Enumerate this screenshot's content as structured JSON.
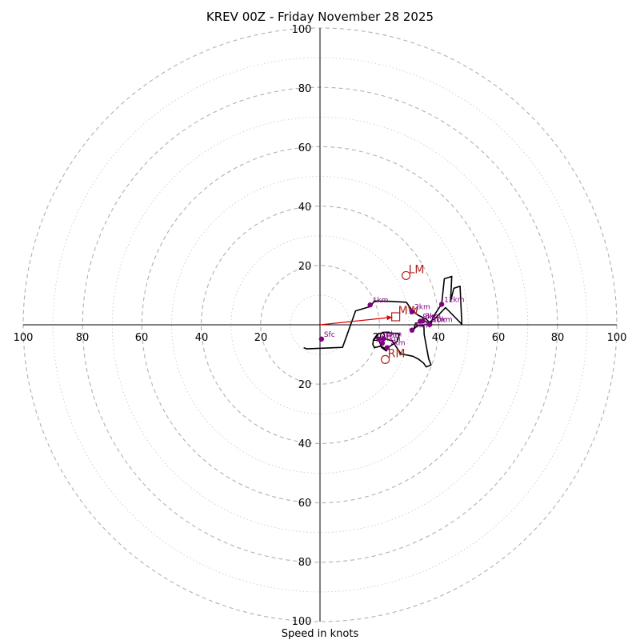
{
  "chart_data": {
    "type": "hodograph",
    "title": "KREV 00Z - Friday November 28 2025",
    "xlabel": "Speed in knots",
    "max_speed": 100,
    "ring_major_step": 20,
    "ring_minor_step": 10,
    "tick_labels": {
      "x_left": [
        "100",
        "80",
        "60",
        "40",
        "20"
      ],
      "x_right": [
        "20",
        "40",
        "60",
        "80",
        "100"
      ],
      "y_top": [
        "100",
        "80",
        "60",
        "40",
        "20"
      ],
      "y_bottom": [
        "20",
        "40",
        "60",
        "80",
        "100"
      ]
    },
    "trace": [
      [
        -5.5,
        -7.7
      ],
      [
        -4.4,
        -8.1
      ],
      [
        7.6,
        -7.6
      ],
      [
        12.0,
        4.7
      ],
      [
        17.1,
        6.2
      ],
      [
        17.6,
        7.0
      ],
      [
        18.3,
        8.0
      ],
      [
        23.8,
        7.9
      ],
      [
        29.1,
        7.6
      ],
      [
        31.2,
        4.6
      ],
      [
        33.1,
        3.2
      ],
      [
        35.7,
        2.0
      ],
      [
        36.8,
        0.9
      ],
      [
        37.4,
        0.2
      ],
      [
        38.0,
        2.5
      ],
      [
        41.0,
        7.0
      ],
      [
        41.9,
        15.5
      ],
      [
        44.4,
        16.3
      ],
      [
        44.0,
        7.9
      ],
      [
        45.1,
        12.3
      ],
      [
        47.2,
        13.0
      ],
      [
        47.8,
        0.2
      ],
      [
        42.3,
        5.8
      ],
      [
        38.9,
        2.2
      ],
      [
        36.4,
        0.6
      ],
      [
        34.4,
        1.9
      ],
      [
        34.0,
        0.8
      ],
      [
        32.2,
        0.5
      ],
      [
        31.6,
        -1.5
      ],
      [
        32.9,
        -0.1
      ],
      [
        35.0,
        -0.4
      ],
      [
        35.1,
        -3.2
      ],
      [
        36.6,
        -11.4
      ],
      [
        37.4,
        -13.5
      ],
      [
        35.8,
        -14.2
      ],
      [
        34.9,
        -12.9
      ],
      [
        33.2,
        -11.6
      ],
      [
        31.3,
        -10.6
      ],
      [
        27.3,
        -9.8
      ],
      [
        24.4,
        -5.5
      ],
      [
        21.5,
        -4.5
      ],
      [
        19.9,
        -5.2
      ],
      [
        20.7,
        -7.6
      ],
      [
        22.3,
        -8.8
      ],
      [
        23.3,
        -7.4
      ],
      [
        26.0,
        -5.6
      ],
      [
        26.8,
        -3.1
      ],
      [
        21.9,
        -2.5
      ],
      [
        19.4,
        -3.1
      ],
      [
        18.0,
        -5.0
      ],
      [
        17.8,
        -6.6
      ],
      [
        18.3,
        -7.7
      ],
      [
        20.4,
        -7.2
      ],
      [
        22.1,
        -8.0
      ],
      [
        22.9,
        -7.7
      ]
    ],
    "height_labels": [
      {
        "label": "Sfc",
        "u": 0.5,
        "v": -4.8
      },
      {
        "label": "1km",
        "u": 16.9,
        "v": 6.7
      },
      {
        "label": "2km",
        "u": 31.0,
        "v": 4.4
      },
      {
        "label": "3km",
        "u": 34.6,
        "v": 1.3
      },
      {
        "label": "5km",
        "u": 31.0,
        "v": -1.8
      },
      {
        "label": "8km",
        "u": 36.8,
        "v": 0.2
      },
      {
        "label": "9km",
        "u": 33.8,
        "v": 1.2
      },
      {
        "label": "10km",
        "u": 37.0,
        "v": 0.1
      },
      {
        "label": "12km",
        "u": 41.0,
        "v": 6.9
      },
      {
        "label": "2km",
        "u": 19.8,
        "v": -4.8
      },
      {
        "label": "4km",
        "u": 21.0,
        "v": -6.2
      },
      {
        "label": "6km",
        "u": 21.4,
        "v": -4.7
      },
      {
        "label": "7km",
        "u": 22.6,
        "v": -7.7
      }
    ],
    "motion_vectors": [
      {
        "label": "LM",
        "u": 29.0,
        "v": 16.6,
        "marker": "circle"
      },
      {
        "label": "MW",
        "u": 25.5,
        "v": 2.7,
        "marker": "square"
      },
      {
        "label": "RM",
        "u": 22.0,
        "v": -11.7,
        "marker": "circle"
      }
    ],
    "colors": {
      "trace": "#000000",
      "height_marker": "#800080",
      "motion": "#b22222",
      "mean_wind_arrow": "#e00000",
      "grid": "#b0b0b0",
      "axis": "#000000"
    }
  }
}
